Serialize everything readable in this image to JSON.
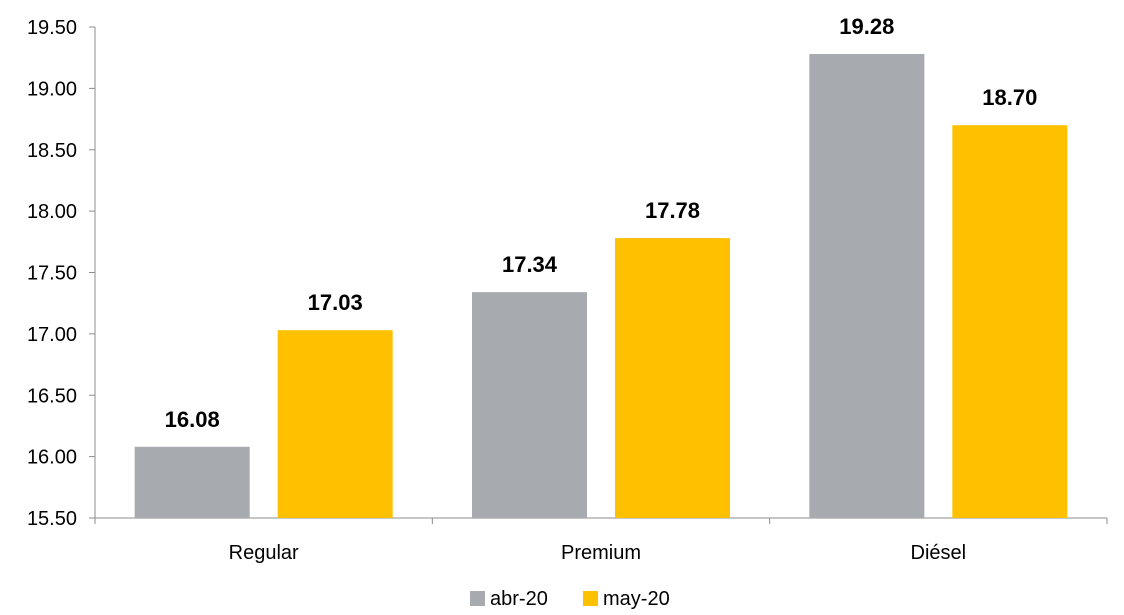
{
  "chart_data": {
    "type": "bar",
    "title": "",
    "xlabel": "",
    "ylabel": "",
    "categories": [
      "Regular",
      "Premium",
      "Diésel"
    ],
    "series": [
      {
        "name": "abr-20",
        "values": [
          16.08,
          17.34,
          19.28
        ],
        "labels": [
          "16.08",
          "17.34",
          "19.28"
        ],
        "color": "#A7ABAF"
      },
      {
        "name": "may-20",
        "values": [
          17.03,
          17.78,
          18.7
        ],
        "labels": [
          "17.03",
          "17.78",
          "18.70"
        ],
        "color": "#FFC000"
      }
    ],
    "ylim": [
      15.5,
      19.5
    ],
    "yticks": [
      15.5,
      16.0,
      16.5,
      17.0,
      17.5,
      18.0,
      18.5,
      19.0,
      19.5
    ],
    "ytick_labels": [
      "15.50",
      "16.00",
      "16.50",
      "17.00",
      "17.50",
      "18.00",
      "18.50",
      "19.00",
      "19.50"
    ],
    "grid": false,
    "legend_position": "bottom-center"
  }
}
